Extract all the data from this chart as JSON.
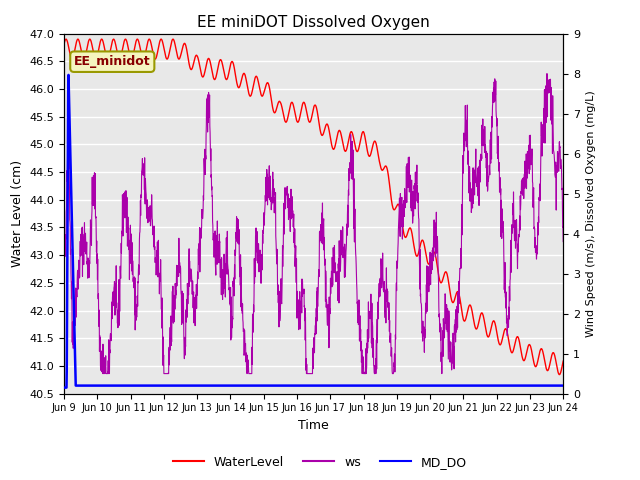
{
  "title": "EE miniDOT Dissolved Oxygen",
  "xlabel": "Time",
  "ylabel_left": "Water Level (cm)",
  "ylabel_right": "Wind Speed (m/s), Dissolved Oxygen (mg/L)",
  "annotation_text": "EE_minidot",
  "ylim_left": [
    40.5,
    47.0
  ],
  "ylim_right": [
    0.0,
    9.0
  ],
  "yticks_left": [
    40.5,
    41.0,
    41.5,
    42.0,
    42.5,
    43.0,
    43.5,
    44.0,
    44.5,
    45.0,
    45.5,
    46.0,
    46.5,
    47.0
  ],
  "yticks_right": [
    0.0,
    1.0,
    2.0,
    3.0,
    4.0,
    5.0,
    6.0,
    7.0,
    8.0,
    9.0
  ],
  "xtick_labels": [
    "Jun 9",
    "Jun 10",
    "Jun 11",
    "Jun 12",
    "Jun 13",
    "Jun 14",
    "Jun 15",
    "Jun 16",
    "Jun 17",
    "Jun 18",
    "Jun 19",
    "Jun 20",
    "Jun 21",
    "Jun 22",
    "Jun 23",
    "Jun 24"
  ],
  "background_color": "#e8e8e8",
  "legend_entries": [
    "WaterLevel",
    "ws",
    "MD_DO"
  ],
  "legend_colors": [
    "#ff0000",
    "#aa00aa",
    "#0000ff"
  ],
  "ws_color": "#aa00aa",
  "wl_color": "#ff0000",
  "do_color": "#0000ff"
}
